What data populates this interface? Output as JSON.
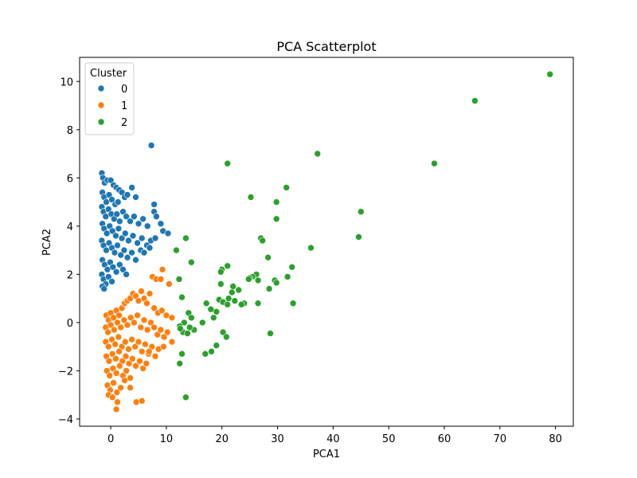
{
  "chart_data": {
    "type": "scatter",
    "title": "PCA Scatterplot",
    "xlabel": "PCA1",
    "ylabel": "PCA2",
    "xlim": [
      -5.6,
      83.2
    ],
    "ylim": [
      -4.3,
      11.0
    ],
    "xticks": [
      0,
      10,
      20,
      30,
      40,
      50,
      60,
      70,
      80
    ],
    "yticks": [
      -4,
      -2,
      0,
      2,
      4,
      6,
      8,
      10
    ],
    "grid": false,
    "legend": {
      "title": "Cluster",
      "placement": "top-left"
    },
    "series": [
      {
        "name": "0",
        "color": "#1f77b4",
        "points": [
          [
            -1.6,
            6.2
          ],
          [
            -1.4,
            6.0
          ],
          [
            -1.1,
            5.8
          ],
          [
            -0.6,
            5.9
          ],
          [
            0.0,
            5.9
          ],
          [
            0.5,
            5.7
          ],
          [
            1.0,
            5.6
          ],
          [
            1.5,
            5.5
          ],
          [
            -1.5,
            5.4
          ],
          [
            -1.2,
            5.2
          ],
          [
            -0.8,
            5.0
          ],
          [
            -0.3,
            5.3
          ],
          [
            0.2,
            5.1
          ],
          [
            0.8,
            4.9
          ],
          [
            1.3,
            5.0
          ],
          [
            2.0,
            5.4
          ],
          [
            2.5,
            5.2
          ],
          [
            3.0,
            5.3
          ],
          [
            3.8,
            5.6
          ],
          [
            4.5,
            5.2
          ],
          [
            -1.6,
            4.8
          ],
          [
            -1.3,
            4.6
          ],
          [
            -0.9,
            4.4
          ],
          [
            -0.4,
            4.7
          ],
          [
            0.1,
            4.5
          ],
          [
            0.6,
            4.3
          ],
          [
            1.1,
            4.5
          ],
          [
            1.6,
            4.2
          ],
          [
            2.2,
            4.6
          ],
          [
            2.8,
            4.4
          ],
          [
            3.5,
            4.2
          ],
          [
            4.2,
            4.4
          ],
          [
            5.0,
            4.1
          ],
          [
            5.8,
            4.3
          ],
          [
            6.6,
            4.0
          ],
          [
            7.8,
            4.9
          ],
          [
            7.8,
            4.6
          ],
          [
            8.2,
            4.4
          ],
          [
            9.0,
            4.1
          ],
          [
            -1.5,
            4.1
          ],
          [
            -1.2,
            3.9
          ],
          [
            -0.7,
            3.7
          ],
          [
            -0.2,
            4.0
          ],
          [
            0.3,
            3.8
          ],
          [
            0.9,
            3.6
          ],
          [
            1.4,
            3.9
          ],
          [
            2.0,
            3.5
          ],
          [
            2.6,
            3.7
          ],
          [
            3.2,
            3.4
          ],
          [
            4.0,
            3.6
          ],
          [
            4.8,
            3.3
          ],
          [
            5.6,
            3.5
          ],
          [
            6.5,
            3.2
          ],
          [
            7.2,
            3.4
          ],
          [
            8.0,
            3.5
          ],
          [
            9.4,
            3.8
          ],
          [
            10.3,
            3.7
          ],
          [
            -1.6,
            3.4
          ],
          [
            -1.3,
            3.2
          ],
          [
            -0.8,
            3.0
          ],
          [
            -0.3,
            3.3
          ],
          [
            0.2,
            3.1
          ],
          [
            0.7,
            2.9
          ],
          [
            1.2,
            3.2
          ],
          [
            1.8,
            2.8
          ],
          [
            2.4,
            3.0
          ],
          [
            3.0,
            2.7
          ],
          [
            3.8,
            2.9
          ],
          [
            4.5,
            2.6
          ],
          [
            5.4,
            3.0
          ],
          [
            6.0,
            2.9
          ],
          [
            7.0,
            3.1
          ],
          [
            -1.5,
            2.6
          ],
          [
            -1.1,
            2.4
          ],
          [
            -0.6,
            2.2
          ],
          [
            -0.1,
            2.5
          ],
          [
            0.4,
            2.3
          ],
          [
            1.0,
            2.1
          ],
          [
            1.6,
            2.4
          ],
          [
            2.2,
            2.2
          ],
          [
            2.8,
            2.0
          ],
          [
            -1.6,
            2.0
          ],
          [
            -1.3,
            1.8
          ],
          [
            -0.9,
            1.6
          ],
          [
            -0.4,
            1.9
          ],
          [
            0.2,
            1.7
          ],
          [
            -1.5,
            1.5
          ],
          [
            -1.2,
            1.4
          ],
          [
            7.3,
            7.35
          ]
        ]
      },
      {
        "name": "1",
        "color": "#ff7f0e",
        "points": [
          [
            -0.8,
            0.3
          ],
          [
            -0.4,
            0.1
          ],
          [
            0.0,
            0.4
          ],
          [
            0.5,
            0.2
          ],
          [
            1.0,
            0.5
          ],
          [
            1.5,
            0.3
          ],
          [
            2.0,
            0.6
          ],
          [
            2.5,
            0.8
          ],
          [
            3.0,
            0.9
          ],
          [
            3.5,
            1.0
          ],
          [
            4.0,
            1.2
          ],
          [
            4.5,
            1.1
          ],
          [
            5.0,
            0.9
          ],
          [
            5.5,
            1.3
          ],
          [
            6.0,
            1.0
          ],
          [
            7.0,
            1.2
          ],
          [
            7.5,
            1.9
          ],
          [
            8.2,
            1.8
          ],
          [
            9.0,
            1.8
          ],
          [
            9.3,
            2.2
          ],
          [
            10.5,
            1.6
          ],
          [
            6.5,
            0.8
          ],
          [
            7.8,
            0.6
          ],
          [
            8.5,
            0.4
          ],
          [
            9.2,
            0.5
          ],
          [
            10.0,
            0.3
          ],
          [
            11.0,
            0.2
          ],
          [
            -0.9,
            -0.2
          ],
          [
            -0.5,
            -0.4
          ],
          [
            0.0,
            -0.1
          ],
          [
            0.6,
            -0.3
          ],
          [
            1.2,
            0.0
          ],
          [
            1.8,
            -0.2
          ],
          [
            2.4,
            0.1
          ],
          [
            3.0,
            -0.1
          ],
          [
            3.6,
            0.2
          ],
          [
            4.2,
            0.0
          ],
          [
            4.8,
            0.3
          ],
          [
            5.4,
            -0.2
          ],
          [
            6.0,
            0.1
          ],
          [
            6.6,
            -0.3
          ],
          [
            7.2,
            0.0
          ],
          [
            7.8,
            -0.2
          ],
          [
            8.4,
            -0.5
          ],
          [
            9.0,
            -0.3
          ],
          [
            9.6,
            -0.6
          ],
          [
            10.2,
            -0.4
          ],
          [
            11.0,
            -0.8
          ],
          [
            -0.9,
            -0.8
          ],
          [
            -0.4,
            -1.0
          ],
          [
            0.2,
            -0.7
          ],
          [
            0.8,
            -0.9
          ],
          [
            1.4,
            -0.6
          ],
          [
            2.0,
            -1.0
          ],
          [
            2.6,
            -0.8
          ],
          [
            3.2,
            -1.1
          ],
          [
            3.8,
            -0.7
          ],
          [
            4.4,
            -1.0
          ],
          [
            5.0,
            -0.8
          ],
          [
            5.6,
            -1.2
          ],
          [
            6.2,
            -0.9
          ],
          [
            6.8,
            -1.3
          ],
          [
            7.4,
            -1.0
          ],
          [
            8.0,
            -1.4
          ],
          [
            8.6,
            -1.1
          ],
          [
            9.5,
            -1.0
          ],
          [
            -0.8,
            -1.4
          ],
          [
            -0.3,
            -1.6
          ],
          [
            0.3,
            -1.3
          ],
          [
            0.9,
            -1.5
          ],
          [
            1.5,
            -1.2
          ],
          [
            2.1,
            -1.6
          ],
          [
            2.7,
            -1.4
          ],
          [
            3.3,
            -1.7
          ],
          [
            3.9,
            -1.5
          ],
          [
            4.5,
            -1.8
          ],
          [
            5.2,
            -1.6
          ],
          [
            5.8,
            -1.9
          ],
          [
            6.4,
            -1.7
          ],
          [
            -0.7,
            -2.0
          ],
          [
            -0.2,
            -2.2
          ],
          [
            0.4,
            -1.9
          ],
          [
            1.0,
            -2.1
          ],
          [
            1.6,
            -1.8
          ],
          [
            2.2,
            -2.2
          ],
          [
            2.8,
            -2.0
          ],
          [
            3.5,
            -2.3
          ],
          [
            -0.6,
            -2.6
          ],
          [
            -0.1,
            -2.8
          ],
          [
            0.5,
            -2.5
          ],
          [
            1.1,
            -2.9
          ],
          [
            1.8,
            -2.7
          ],
          [
            2.5,
            -2.4
          ],
          [
            -0.4,
            -3.0
          ],
          [
            0.3,
            -3.1
          ],
          [
            1.2,
            -3.3
          ],
          [
            1.0,
            -3.6
          ],
          [
            4.6,
            -3.3
          ],
          [
            5.6,
            -3.25
          ],
          [
            3.5,
            -2.7
          ],
          [
            6.9,
            -1.2
          ]
        ]
      },
      {
        "name": "2",
        "color": "#2ca02c",
        "points": [
          [
            79.0,
            10.3
          ],
          [
            65.5,
            9.2
          ],
          [
            58.2,
            6.6
          ],
          [
            37.2,
            7.0
          ],
          [
            21.0,
            6.6
          ],
          [
            25.2,
            5.2
          ],
          [
            31.6,
            5.6
          ],
          [
            29.8,
            5.0
          ],
          [
            45.0,
            4.6
          ],
          [
            29.8,
            4.3
          ],
          [
            44.6,
            3.55
          ],
          [
            36.0,
            3.1
          ],
          [
            27.0,
            3.5
          ],
          [
            27.3,
            3.4
          ],
          [
            28.3,
            2.7
          ],
          [
            13.5,
            3.5
          ],
          [
            14.5,
            2.5
          ],
          [
            11.8,
            3.0
          ],
          [
            21.0,
            2.35
          ],
          [
            20.0,
            2.2
          ],
          [
            19.8,
            2.1
          ],
          [
            26.2,
            2.0
          ],
          [
            25.5,
            1.9
          ],
          [
            25.0,
            1.85
          ],
          [
            24.8,
            1.8
          ],
          [
            26.5,
            1.75
          ],
          [
            29.5,
            1.75
          ],
          [
            32.6,
            2.3
          ],
          [
            31.8,
            1.9
          ],
          [
            29.8,
            1.65
          ],
          [
            19.8,
            1.6
          ],
          [
            22.0,
            1.5
          ],
          [
            21.8,
            1.25
          ],
          [
            23.0,
            1.35
          ],
          [
            12.3,
            1.8
          ],
          [
            28.5,
            1.4
          ],
          [
            12.8,
            1.05
          ],
          [
            21.2,
            1.0
          ],
          [
            19.5,
            0.95
          ],
          [
            20.2,
            0.85
          ],
          [
            22.3,
            0.9
          ],
          [
            24.0,
            0.8
          ],
          [
            26.5,
            0.8
          ],
          [
            32.8,
            0.8
          ],
          [
            17.2,
            0.8
          ],
          [
            18.0,
            0.55
          ],
          [
            19.0,
            0.45
          ],
          [
            21.0,
            0.75
          ],
          [
            23.5,
            0.75
          ],
          [
            18.5,
            0.2
          ],
          [
            14.0,
            0.4
          ],
          [
            14.5,
            0.2
          ],
          [
            16.5,
            0.0
          ],
          [
            13.2,
            0.0
          ],
          [
            12.4,
            -0.15
          ],
          [
            15.0,
            -0.3
          ],
          [
            13.0,
            -0.4
          ],
          [
            12.5,
            -0.25
          ],
          [
            13.8,
            -0.45
          ],
          [
            14.2,
            -0.2
          ],
          [
            20.2,
            -0.4
          ],
          [
            20.8,
            -0.6
          ],
          [
            19.0,
            -0.95
          ],
          [
            18.1,
            -1.2
          ],
          [
            17.0,
            -1.3
          ],
          [
            12.8,
            -1.3
          ],
          [
            12.4,
            -1.7
          ],
          [
            28.7,
            -0.45
          ],
          [
            13.5,
            -3.1
          ]
        ]
      }
    ]
  }
}
